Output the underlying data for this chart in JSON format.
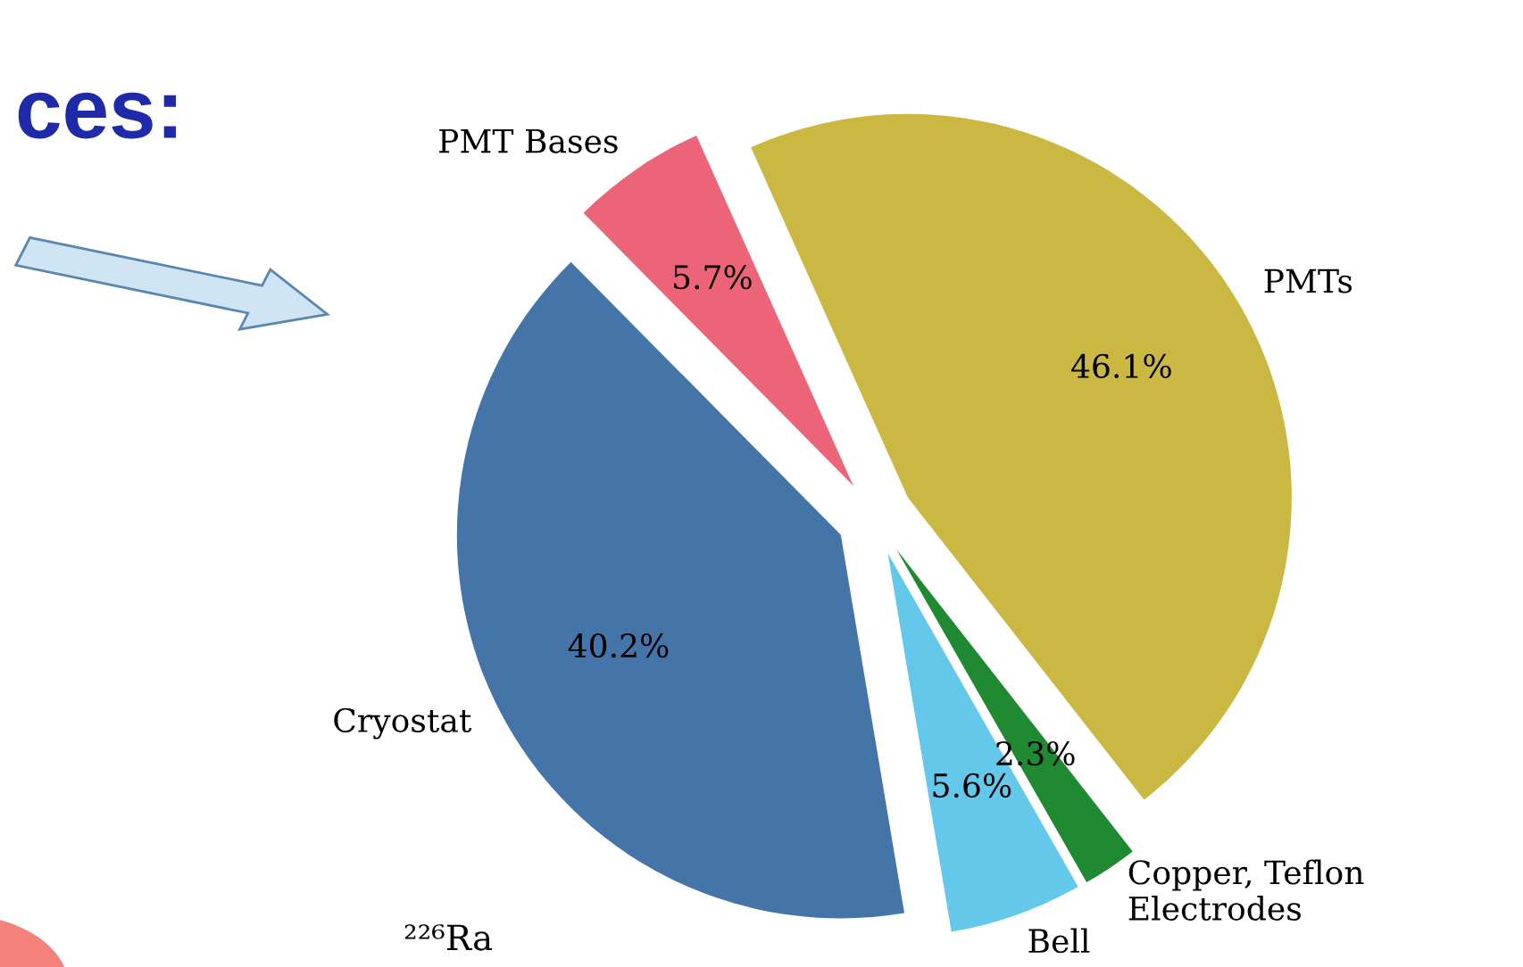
{
  "chart_data": {
    "type": "pie",
    "title": "ces:",
    "categories": [
      "PMTs",
      "PMT Bases",
      "Cryostat",
      "Bell",
      "Copper, Teflon\nElectrodes"
    ],
    "values": [
      46.1,
      5.7,
      40.2,
      5.6,
      2.3
    ],
    "value_labels": [
      "46.1%",
      "5.7%",
      "40.2%",
      "5.6%",
      "2.3%"
    ],
    "colors": [
      "#cbb843",
      "#ec6478",
      "#4575a8",
      "#64c8ea",
      "#1f8a32"
    ],
    "annotations": [
      "²²⁶Ra"
    ],
    "legend": false
  }
}
